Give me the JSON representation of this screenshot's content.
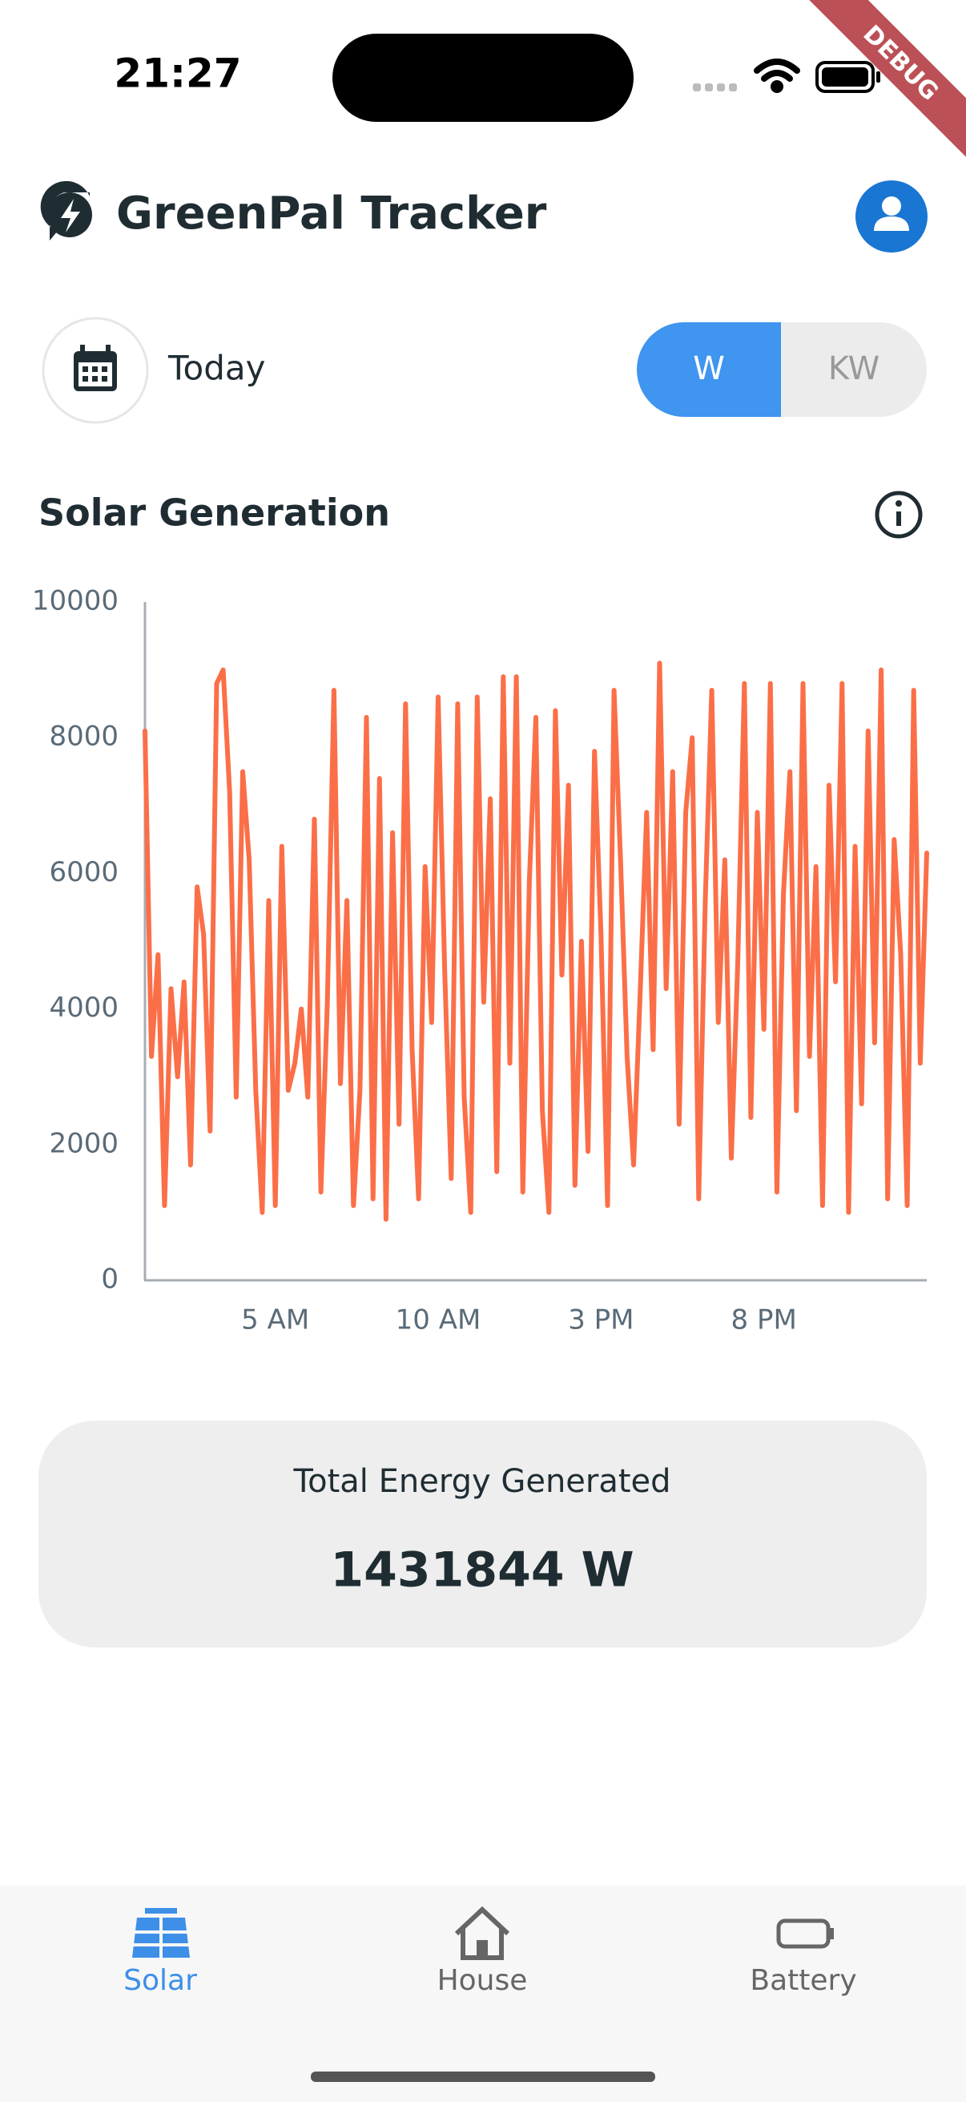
{
  "status": {
    "time": "21:27"
  },
  "debug_banner": "DEBUG",
  "header": {
    "title": "GreenPal Tracker"
  },
  "controls": {
    "date_label": "Today",
    "units": [
      "W",
      "KW"
    ]
  },
  "section": {
    "title": "Solar Generation"
  },
  "chart_data": {
    "type": "line",
    "color": "#fb6f48",
    "xlim": [
      1,
      25
    ],
    "ylim": [
      0,
      10000
    ],
    "yticks": [
      0,
      2000,
      4000,
      6000,
      8000,
      10000
    ],
    "xticks": [
      {
        "value": 5,
        "label": "5 AM"
      },
      {
        "value": 10,
        "label": "10 AM"
      },
      {
        "value": 15,
        "label": "3 PM"
      },
      {
        "value": 20,
        "label": "8 PM"
      }
    ],
    "x": [
      1,
      1.2,
      1.4,
      1.6,
      1.8,
      2,
      2.2,
      2.4,
      2.6,
      2.8,
      3,
      3.2,
      3.4,
      3.6,
      3.8,
      4,
      4.2,
      4.4,
      4.6,
      4.8,
      5,
      5.2,
      5.4,
      5.6,
      5.8,
      6,
      6.2,
      6.4,
      6.6,
      6.8,
      7,
      7.2,
      7.4,
      7.6,
      7.8,
      8,
      8.2,
      8.4,
      8.6,
      8.8,
      9,
      9.2,
      9.4,
      9.6,
      9.8,
      10,
      10.2,
      10.4,
      10.6,
      10.8,
      11,
      11.2,
      11.4,
      11.6,
      11.8,
      12,
      12.2,
      12.4,
      12.6,
      12.8,
      13,
      13.2,
      13.4,
      13.6,
      13.8,
      14,
      14.2,
      14.4,
      14.6,
      14.8,
      15,
      15.2,
      15.4,
      15.6,
      15.8,
      16,
      16.2,
      16.4,
      16.6,
      16.8,
      17,
      17.2,
      17.4,
      17.6,
      17.8,
      18,
      18.2,
      18.4,
      18.6,
      18.8,
      19,
      19.2,
      19.4,
      19.6,
      19.8,
      20,
      20.2,
      20.4,
      20.6,
      20.8,
      21,
      21.2,
      21.4,
      21.6,
      21.8,
      22,
      22.2,
      22.4,
      22.6,
      22.8,
      23,
      23.2,
      23.4,
      23.6,
      23.8,
      24,
      24.2,
      24.4,
      24.6,
      24.8,
      25
    ],
    "values": [
      8100,
      3300,
      4800,
      1100,
      4300,
      3000,
      4400,
      1700,
      5800,
      5100,
      2200,
      8800,
      9000,
      7200,
      2700,
      7500,
      6200,
      2800,
      1000,
      5600,
      1100,
      6400,
      2800,
      3200,
      4000,
      2700,
      6800,
      1300,
      4100,
      8700,
      2900,
      5600,
      1100,
      2800,
      8300,
      1200,
      7400,
      900,
      6600,
      2300,
      8500,
      3400,
      1200,
      6100,
      3800,
      8600,
      4600,
      1500,
      8500,
      2700,
      1000,
      8600,
      4100,
      7100,
      1600,
      8900,
      3200,
      8900,
      1300,
      5900,
      8300,
      2500,
      1000,
      8400,
      4500,
      7300,
      1400,
      5000,
      1900,
      7800,
      5100,
      1100,
      8700,
      6200,
      3300,
      1700,
      4200,
      6900,
      3400,
      9100,
      4300,
      7500,
      2300,
      6900,
      8000,
      1200,
      5600,
      8700,
      3800,
      6200,
      1800,
      4700,
      8800,
      2400,
      6900,
      3700,
      8800,
      1300,
      5700,
      7500,
      2500,
      8800,
      3300,
      6100,
      1100,
      7300,
      4400,
      8800,
      1000,
      6400,
      2600,
      8100,
      3500,
      9000,
      1200,
      6500,
      4800,
      1100,
      8700,
      3200,
      6300
    ]
  },
  "summary": {
    "label": "Total Energy Generated",
    "value": "1431844 W"
  },
  "nav": [
    "Solar",
    "House",
    "Battery"
  ]
}
